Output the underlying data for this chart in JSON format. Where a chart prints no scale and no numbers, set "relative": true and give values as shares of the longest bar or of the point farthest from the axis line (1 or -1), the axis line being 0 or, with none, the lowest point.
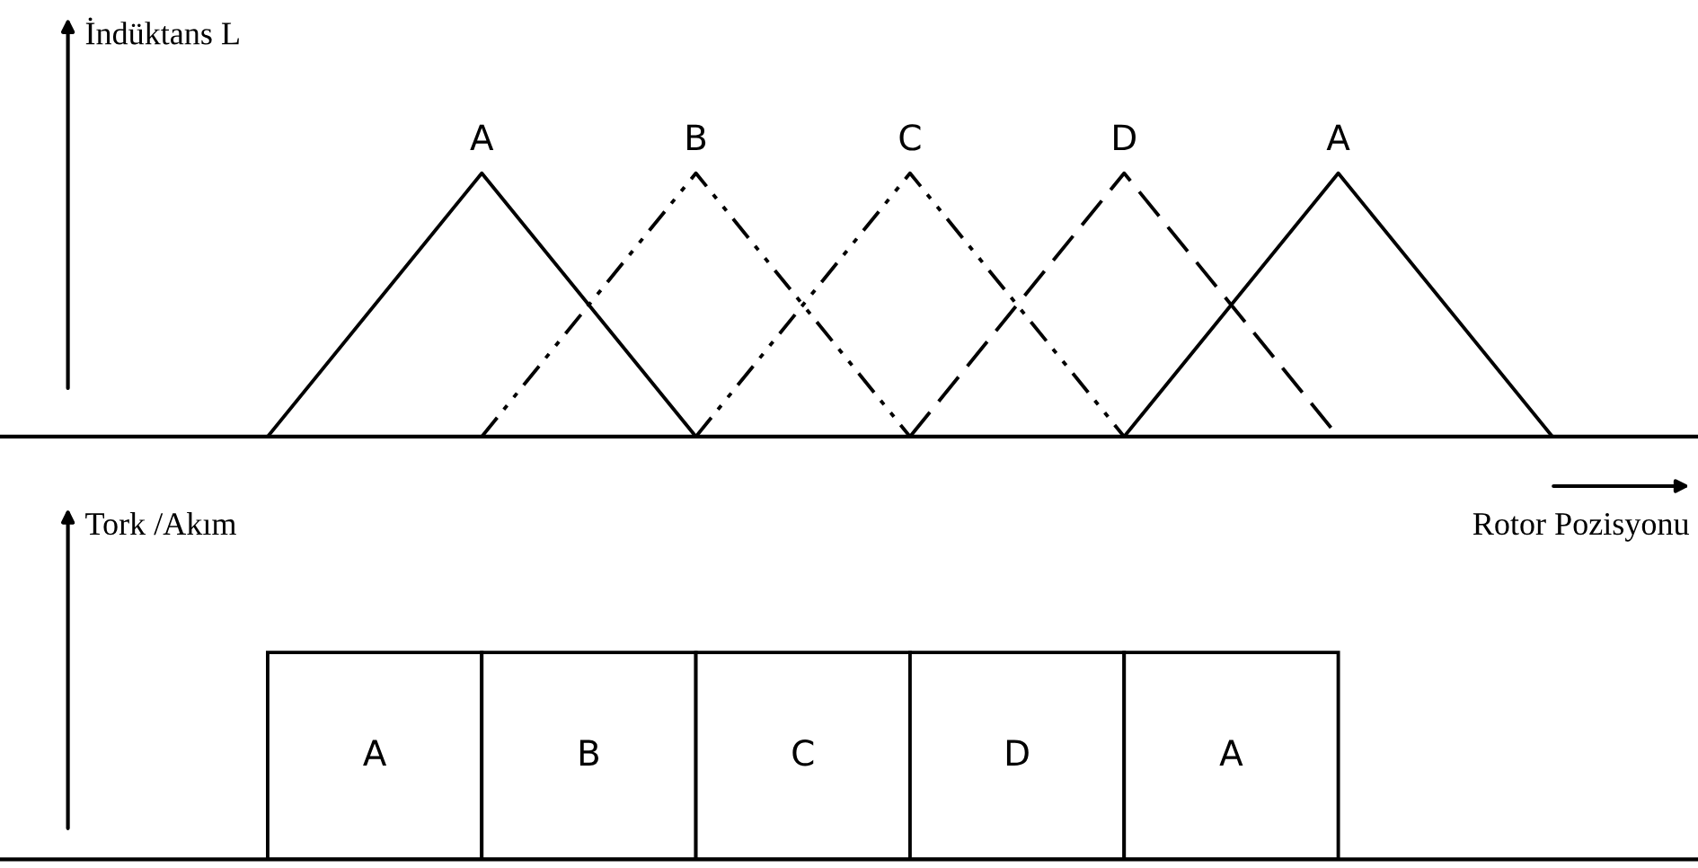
{
  "chart_data": [
    {
      "type": "line",
      "relative": true,
      "ylabel": "İndüktans L",
      "categories": [
        null,
        null,
        null,
        null,
        null,
        null,
        null
      ],
      "series": [
        {
          "name": "A",
          "color": "#000000",
          "line_style": "solid",
          "values": [
            0,
            1,
            0,
            null,
            null,
            null,
            null
          ]
        },
        {
          "name": "B",
          "color": "#000000",
          "line_style": "dotted",
          "values": [
            null,
            0,
            1,
            0,
            null,
            null,
            null
          ]
        },
        {
          "name": "C",
          "color": "#000000",
          "line_style": "dotted",
          "values": [
            null,
            null,
            0,
            1,
            0,
            null,
            null
          ]
        },
        {
          "name": "D",
          "color": "#000000",
          "line_style": "dashed",
          "values": [
            null,
            null,
            null,
            0,
            1,
            0,
            null
          ]
        },
        {
          "name": "A",
          "color": "#000000",
          "line_style": "solid",
          "values": [
            null,
            null,
            null,
            null,
            0,
            1,
            0
          ]
        }
      ]
    },
    {
      "type": "bar",
      "relative": true,
      "ylabel": "Tork /Akım",
      "xlabel": "Rotor Pozisyonu",
      "categories": [
        "A",
        "B",
        "C",
        "D",
        "A"
      ],
      "values": [
        1,
        1,
        1,
        1,
        1
      ],
      "color": "#000000"
    }
  ]
}
